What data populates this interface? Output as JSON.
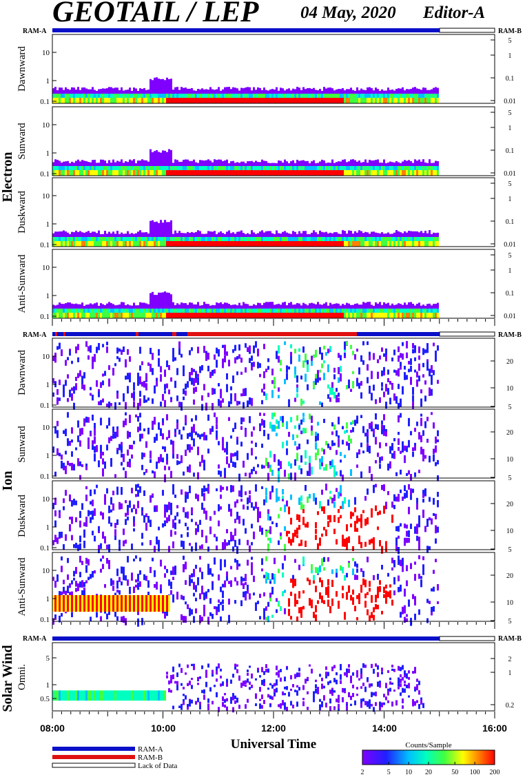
{
  "header": {
    "title": "GEOTAIL / LEP",
    "date": "04 May, 2020",
    "editor": "Editor-A"
  },
  "ram_labels": {
    "left": "RAM-A",
    "right": "RAM-B"
  },
  "groups": {
    "electron": {
      "label": "Electron"
    },
    "ion": {
      "label": "Ion"
    },
    "solar_wind": {
      "label": "Solar Wind"
    }
  },
  "panels": [
    {
      "group": "electron",
      "label": "Dawnward",
      "left_ticks": [
        "10",
        "1",
        "0.1"
      ],
      "right_ticks": [
        "5",
        "1",
        "0.1",
        "0.01"
      ]
    },
    {
      "group": "electron",
      "label": "Sunward",
      "left_ticks": [
        "10",
        "1",
        "0.1"
      ],
      "right_ticks": [
        "5",
        "1",
        "0.1",
        "0.01"
      ]
    },
    {
      "group": "electron",
      "label": "Duskward",
      "left_ticks": [
        "10",
        "1",
        "0.1"
      ],
      "right_ticks": [
        "5",
        "1",
        "0.1",
        "0.01"
      ]
    },
    {
      "group": "electron",
      "label": "Anti-Sunward",
      "left_ticks": [
        "10",
        "1",
        "0.1"
      ],
      "right_ticks": [
        "5",
        "1",
        "0.1",
        "0.01"
      ]
    },
    {
      "group": "ion",
      "label": "Dawnward",
      "left_ticks": [
        "10",
        "1",
        "0.1"
      ],
      "right_ticks": [
        "20",
        "10",
        "5"
      ]
    },
    {
      "group": "ion",
      "label": "Sunward",
      "left_ticks": [
        "10",
        "1",
        "0.1"
      ],
      "right_ticks": [
        "20",
        "10",
        "5"
      ]
    },
    {
      "group": "ion",
      "label": "Duskward",
      "left_ticks": [
        "10",
        "1",
        "0.1"
      ],
      "right_ticks": [
        "20",
        "10",
        "5"
      ]
    },
    {
      "group": "ion",
      "label": "Anti-Sunward",
      "left_ticks": [
        "10",
        "1",
        "0.1"
      ],
      "right_ticks": [
        "20",
        "10",
        "5"
      ]
    },
    {
      "group": "solar_wind",
      "label": "Omni.",
      "left_ticks": [
        "5",
        "1",
        "0.5"
      ],
      "right_ticks": [
        "2",
        "1",
        "0.2"
      ]
    }
  ],
  "x_axis": {
    "label": "Universal Time",
    "ticks": [
      "08:00",
      "10:00",
      "12:00",
      "14:00",
      "16:00"
    ]
  },
  "legend": {
    "items": [
      {
        "label": "RAM-A",
        "color": "#0a10c8"
      },
      {
        "label": "RAM-B",
        "color": "#e01010"
      },
      {
        "label": "Lack of Data",
        "color": "#ffffff"
      }
    ]
  },
  "colorbar": {
    "title": "Counts/Sample",
    "ticks": [
      "2",
      "5",
      "10",
      "20",
      "50",
      "100",
      "200"
    ],
    "colors": [
      "#7f00ff",
      "#2020ff",
      "#00c0ff",
      "#00ffc0",
      "#40ff40",
      "#ffff00",
      "#ff8000",
      "#ff0000"
    ]
  },
  "chart_data": {
    "type": "heatmap",
    "title": "GEOTAIL / LEP",
    "xlabel": "Universal Time",
    "xlim": [
      "08:00",
      "16:00"
    ],
    "data_end": "15:00",
    "color_scale": {
      "label": "Counts/Sample",
      "min": 2,
      "max": 200,
      "log": true
    },
    "ram_status": {
      "electron": "RAM-A",
      "ion": "RAM-B from about 10:30 to 13:50, RAM-A otherwise",
      "solar_wind": "RAM-A"
    },
    "panels": [
      {
        "group": "Electron",
        "direction": "Dawnward",
        "y_log": true,
        "ylim": [
          0.08,
          40
        ],
        "right_ylim": [
          0.008,
          6
        ]
      },
      {
        "group": "Electron",
        "direction": "Sunward",
        "y_log": true,
        "ylim": [
          0.08,
          40
        ],
        "right_ylim": [
          0.008,
          6
        ]
      },
      {
        "group": "Electron",
        "direction": "Duskward",
        "y_log": true,
        "ylim": [
          0.08,
          40
        ],
        "right_ylim": [
          0.008,
          6
        ]
      },
      {
        "group": "Electron",
        "direction": "Anti-Sunward",
        "y_log": true,
        "ylim": [
          0.08,
          40
        ],
        "right_ylim": [
          0.008,
          6
        ]
      },
      {
        "group": "Ion",
        "direction": "Dawnward",
        "y_log": true,
        "ylim": [
          0.08,
          40
        ],
        "right_ylim": [
          5,
          40
        ]
      },
      {
        "group": "Ion",
        "direction": "Sunward",
        "y_log": true,
        "ylim": [
          0.08,
          40
        ],
        "right_ylim": [
          5,
          40
        ]
      },
      {
        "group": "Ion",
        "direction": "Duskward",
        "y_log": true,
        "ylim": [
          0.08,
          40
        ],
        "right_ylim": [
          5,
          40
        ]
      },
      {
        "group": "Ion",
        "direction": "Anti-Sunward",
        "y_log": true,
        "ylim": [
          0.08,
          40
        ],
        "right_ylim": [
          5,
          40
        ]
      },
      {
        "group": "Solar Wind",
        "direction": "Omni.",
        "y_log": true,
        "ylim": [
          0.25,
          8
        ],
        "right_ylim": [
          0.15,
          3
        ]
      }
    ]
  }
}
